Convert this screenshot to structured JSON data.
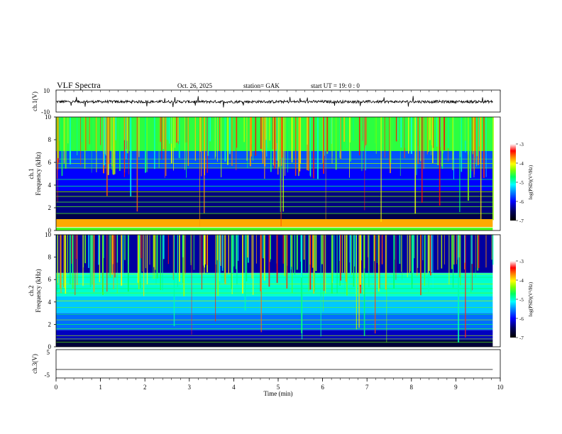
{
  "header": {
    "title": "VLF  Spectra",
    "date": "Oct. 26, 2025",
    "station": "station= GAK",
    "start_ut": "start  UT  =   19: 0  : 0"
  },
  "chart_data": [
    {
      "type": "line",
      "panel": "ch1-waveform",
      "ylabel": "ch.1(V)",
      "ylim": [
        -10,
        10
      ],
      "yticks": [
        "10",
        "-10"
      ],
      "x_range_min": [
        0,
        9.83
      ],
      "series": [
        {
          "baseline": -0.6,
          "noise_amplitude": 2.5,
          "color": "#000000"
        }
      ]
    },
    {
      "type": "heatmap",
      "panel": "ch1-spectrogram",
      "ylabel": "Frequency (kHz)",
      "channel_label": "ch.1",
      "ylim": [
        0,
        10
      ],
      "yticks": [
        "0",
        "2",
        "4",
        "6",
        "8",
        "10"
      ],
      "x_range_min": [
        0,
        9.83
      ],
      "description_colormap": "log(PSD) from -7 (black) to -3 (white)",
      "colorbar": {
        "label": "log(PSD)(V²/Hz)",
        "ticks": [
          "-3",
          "-4",
          "-5",
          "-6",
          "-7"
        ],
        "range": [
          -7,
          -3
        ]
      },
      "bands_khz": [
        {
          "from": 0.0,
          "to": 0.25,
          "level": -4.5
        },
        {
          "from": 0.3,
          "to": 1.0,
          "level": -3.8
        },
        {
          "from": 1.0,
          "to": 1.5,
          "level": -6.6
        },
        {
          "from": 1.5,
          "to": 3.5,
          "level": -6.4
        },
        {
          "from": 3.5,
          "to": 5.5,
          "level": -6.0
        },
        {
          "from": 5.5,
          "to": 7.0,
          "level": -5.7
        },
        {
          "from": 7.0,
          "to": 10.0,
          "level": -4.6
        }
      ],
      "lines_khz": [
        1.5,
        2.1,
        2.5,
        3.0,
        3.4,
        3.9,
        4.5,
        5.5,
        5.9,
        6.3
      ]
    },
    {
      "type": "heatmap",
      "panel": "ch2-spectrogram",
      "ylabel": "Frequency (kHz)",
      "channel_label": "ch.2",
      "ylim": [
        0,
        10
      ],
      "yticks": [
        "0",
        "2",
        "4",
        "6",
        "8",
        "10"
      ],
      "x_range_min": [
        0,
        9.83
      ],
      "colorbar": {
        "label": "log(PSD)(V²/Hz)",
        "ticks": [
          "-3",
          "-4",
          "-5",
          "-6",
          "-7"
        ],
        "range": [
          -7,
          -3
        ]
      },
      "bands_khz": [
        {
          "from": 0.0,
          "to": 0.6,
          "level": -6.7
        },
        {
          "from": 0.6,
          "to": 1.5,
          "level": -6.2
        },
        {
          "from": 1.5,
          "to": 3.0,
          "level": -5.6
        },
        {
          "from": 3.0,
          "to": 4.5,
          "level": -5.3
        },
        {
          "from": 4.5,
          "to": 6.6,
          "level": -5.0
        },
        {
          "from": 6.6,
          "to": 10.0,
          "level": -6.3
        }
      ],
      "lines_khz": [
        0.4,
        0.7,
        1.0,
        1.6,
        2.0,
        2.4,
        2.9,
        3.5,
        4.1,
        4.8,
        5.2,
        5.6,
        6.2,
        6.5
      ]
    },
    {
      "type": "line",
      "panel": "ch3-waveform",
      "ylabel": "ch.3(V)",
      "ylim": [
        -5,
        5
      ],
      "yticks": [
        "5",
        "-5"
      ],
      "x_range_min": [
        0,
        9.83
      ],
      "series": [
        {
          "baseline": -2.0,
          "noise_amplitude": 0,
          "color": "#000000"
        }
      ],
      "xlabel": "Time  (min)",
      "xlim": [
        0,
        10
      ],
      "xticks": [
        "0",
        "1",
        "2",
        "3",
        "4",
        "5",
        "6",
        "7",
        "8",
        "9",
        "10"
      ]
    }
  ]
}
